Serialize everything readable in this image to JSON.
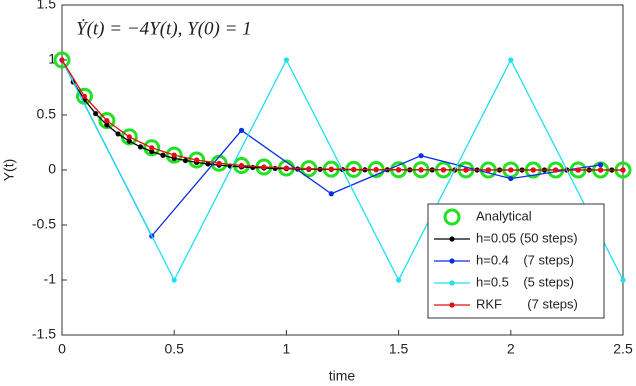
{
  "chart_data": {
    "type": "line",
    "title": "Ẏ(t) = −4Y(t), Y(0) = 1",
    "x_label": "time",
    "y_label": "Y(t)",
    "xlim": [
      0,
      2.5
    ],
    "ylim": [
      -1.5,
      1.5
    ],
    "xticks": [
      0,
      0.5,
      1,
      1.5,
      2,
      2.5
    ],
    "yticks": [
      -1.5,
      -1,
      -0.5,
      0,
      0.5,
      1,
      1.5
    ],
    "legend": "lower right",
    "series": [
      {
        "name": "Analytical",
        "color": "#22e022",
        "marker": "ring",
        "line": false,
        "x": [
          0,
          0.1,
          0.2,
          0.3,
          0.4,
          0.5,
          0.6,
          0.7,
          0.8,
          0.9,
          1,
          1.1,
          1.2,
          1.3,
          1.4,
          1.5,
          1.6,
          1.7,
          1.8,
          1.9,
          2,
          2.1,
          2.2,
          2.3,
          2.4,
          2.5
        ],
        "values": [
          1,
          0.67,
          0.449,
          0.301,
          0.202,
          0.135,
          0.091,
          0.061,
          0.041,
          0.027,
          0.018,
          0.012,
          0.008,
          0.006,
          0.004,
          0.002,
          0.002,
          0.001,
          0.001,
          0,
          0,
          0,
          0,
          0,
          0,
          0
        ]
      },
      {
        "name": "h=0.05 (50 steps)",
        "color": "#000000",
        "marker": "dot",
        "line": true,
        "x": [
          0,
          0.05,
          0.1,
          0.15,
          0.2,
          0.25,
          0.3,
          0.35,
          0.4,
          0.45,
          0.5,
          0.55,
          0.6,
          0.65,
          0.7,
          0.75,
          0.8,
          0.85,
          0.9,
          0.95,
          1,
          1.05,
          1.1,
          1.15,
          1.2,
          1.25,
          1.3,
          1.35,
          1.4,
          1.45,
          1.5,
          1.55,
          1.6,
          1.65,
          1.7,
          1.75,
          1.8,
          1.85,
          1.9,
          1.95,
          2,
          2.05,
          2.1,
          2.15,
          2.2,
          2.25,
          2.3,
          2.35,
          2.4,
          2.45,
          2.5
        ],
        "values": [
          1,
          0.8,
          0.64,
          0.512,
          0.41,
          0.328,
          0.262,
          0.21,
          0.168,
          0.134,
          0.107,
          0.086,
          0.069,
          0.055,
          0.044,
          0.035,
          0.028,
          0.023,
          0.018,
          0.014,
          0.012,
          0.009,
          0.007,
          0.006,
          0.005,
          0.004,
          0.003,
          0.002,
          0.002,
          0.002,
          0.001,
          0.001,
          0.001,
          0.001,
          0.001,
          0,
          0,
          0,
          0,
          0,
          0,
          0,
          0,
          0,
          0,
          0,
          0,
          0,
          0,
          0,
          0
        ]
      },
      {
        "name": "h=0.4    (7 steps)",
        "color": "#0a2ee8",
        "marker": "dot",
        "line": true,
        "x": [
          0,
          0.4,
          0.8,
          1.2,
          1.6,
          2,
          2.4
        ],
        "values": [
          1,
          -0.6,
          0.36,
          -0.216,
          0.13,
          -0.078,
          0.047
        ]
      },
      {
        "name": "h=0.5    (5 steps)",
        "color": "#1ee0f0",
        "marker": "dot",
        "line": true,
        "x": [
          0,
          0.5,
          1,
          1.5,
          2,
          2.5
        ],
        "values": [
          1,
          -1,
          1,
          -1,
          1,
          -1
        ]
      },
      {
        "name": "RKF       (7 steps)",
        "color": "#e01010",
        "marker": "dot",
        "line": true,
        "x": [
          0,
          0.1,
          0.2,
          0.3,
          0.4,
          0.5,
          0.6,
          0.7,
          0.8,
          0.9,
          1,
          1.1,
          1.2,
          1.3,
          1.4,
          1.5,
          1.6,
          1.7,
          1.8,
          1.9,
          2,
          2.1,
          2.2,
          2.3,
          2.4,
          2.5
        ],
        "values": [
          1,
          0.67,
          0.449,
          0.301,
          0.202,
          0.135,
          0.091,
          0.061,
          0.041,
          0.027,
          0.018,
          0.012,
          0.008,
          0.006,
          0.004,
          0.002,
          0.002,
          0.001,
          0.001,
          0,
          0,
          0,
          0,
          0,
          0,
          0
        ]
      }
    ]
  }
}
